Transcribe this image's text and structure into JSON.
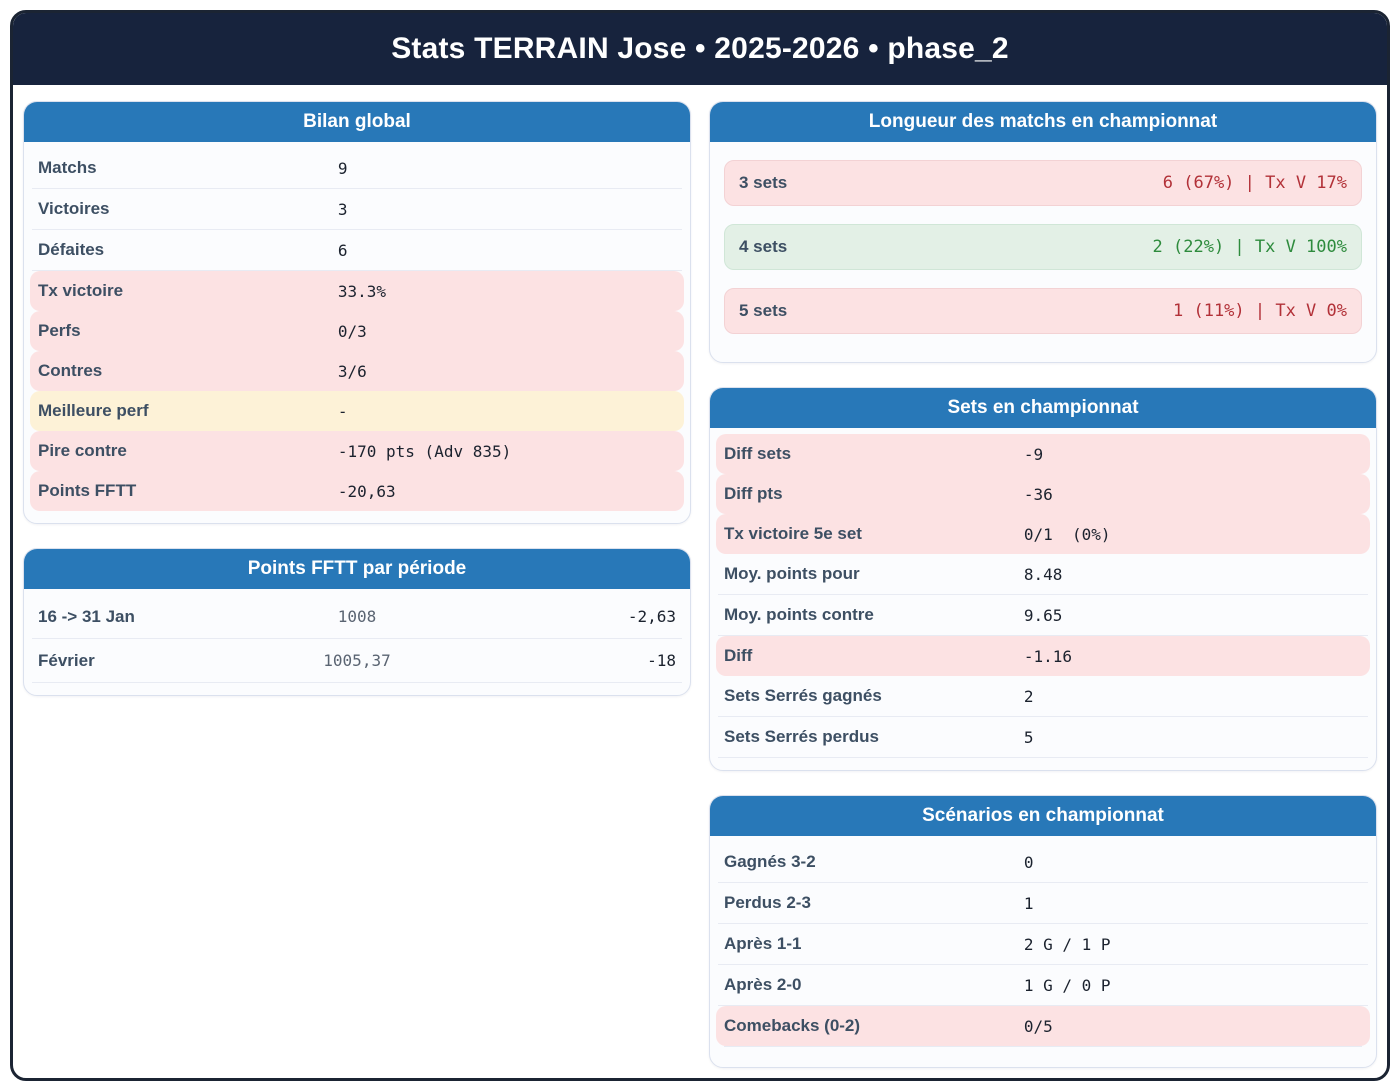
{
  "title": "Stats TERRAIN Jose • 2025-2026 • phase_2",
  "colors": {
    "banner_navy": "#17233d",
    "header_blue": "#2878b8",
    "highlight_pink": "#fce2e3",
    "highlight_yellow": "#fdf2d7",
    "win_green_bg": "#e3f0e6",
    "loss_red_text": "#b23138",
    "win_green_text": "#2e8b3d"
  },
  "bilan": {
    "title": "Bilan global",
    "rows": [
      {
        "label": "Matchs",
        "value": "9",
        "highlight": "none"
      },
      {
        "label": "Victoires",
        "value": "3",
        "highlight": "none"
      },
      {
        "label": "Défaites",
        "value": "6",
        "highlight": "none"
      },
      {
        "label": "Tx victoire",
        "value": "33.3%",
        "highlight": "pink"
      },
      {
        "label": "Perfs",
        "value": "0/3",
        "highlight": "pink"
      },
      {
        "label": "Contres",
        "value": "3/6",
        "highlight": "pink"
      },
      {
        "label": "Meilleure perf",
        "value": "-",
        "highlight": "yellow"
      },
      {
        "label": "Pire contre",
        "value": "-170 pts (Adv 835)",
        "highlight": "pink"
      },
      {
        "label": "Points FFTT",
        "value": "-20,63",
        "highlight": "pink"
      }
    ]
  },
  "periodes": {
    "title": "Points FFTT par période",
    "rows": [
      {
        "label": "16 -> 31 Jan",
        "points": "1008",
        "diff": "-2,63"
      },
      {
        "label": "Février",
        "points": "1005,37",
        "diff": "-18"
      }
    ]
  },
  "longueur": {
    "title": "Longueur des matchs en championnat",
    "rows": [
      {
        "label": "3 sets",
        "value": "6 (67%) | Tx V 17%",
        "tone": "loss"
      },
      {
        "label": "4 sets",
        "value": "2 (22%) | Tx V 100%",
        "tone": "win"
      },
      {
        "label": "5 sets",
        "value": "1 (11%) | Tx V 0%",
        "tone": "loss"
      }
    ]
  },
  "sets": {
    "title": "Sets en championnat",
    "rows": [
      {
        "label": "Diff sets",
        "value": "-9",
        "highlight": "pink"
      },
      {
        "label": "Diff pts",
        "value": "-36",
        "highlight": "pink"
      },
      {
        "label": "Tx victoire 5e set",
        "value": "0/1  (0%)",
        "highlight": "pink"
      },
      {
        "label": "Moy. points pour",
        "value": "8.48",
        "highlight": "none"
      },
      {
        "label": "Moy. points contre",
        "value": "9.65",
        "highlight": "none"
      },
      {
        "label": "Diff",
        "value": "-1.16",
        "highlight": "pink"
      },
      {
        "label": "Sets Serrés gagnés",
        "value": "2",
        "highlight": "none"
      },
      {
        "label": "Sets Serrés perdus",
        "value": "5",
        "highlight": "none"
      }
    ]
  },
  "scenarios": {
    "title": "Scénarios en championnat",
    "rows": [
      {
        "label": "Gagnés 3-2",
        "value": "0",
        "highlight": "none"
      },
      {
        "label": "Perdus 2-3",
        "value": "1",
        "highlight": "none"
      },
      {
        "label": "Après 1-1",
        "value": "2 G / 1 P",
        "highlight": "none"
      },
      {
        "label": "Après 2-0",
        "value": "1 G / 0 P",
        "highlight": "none"
      },
      {
        "label": "Comebacks (0-2)",
        "value": "0/5",
        "highlight": "pink"
      }
    ]
  }
}
